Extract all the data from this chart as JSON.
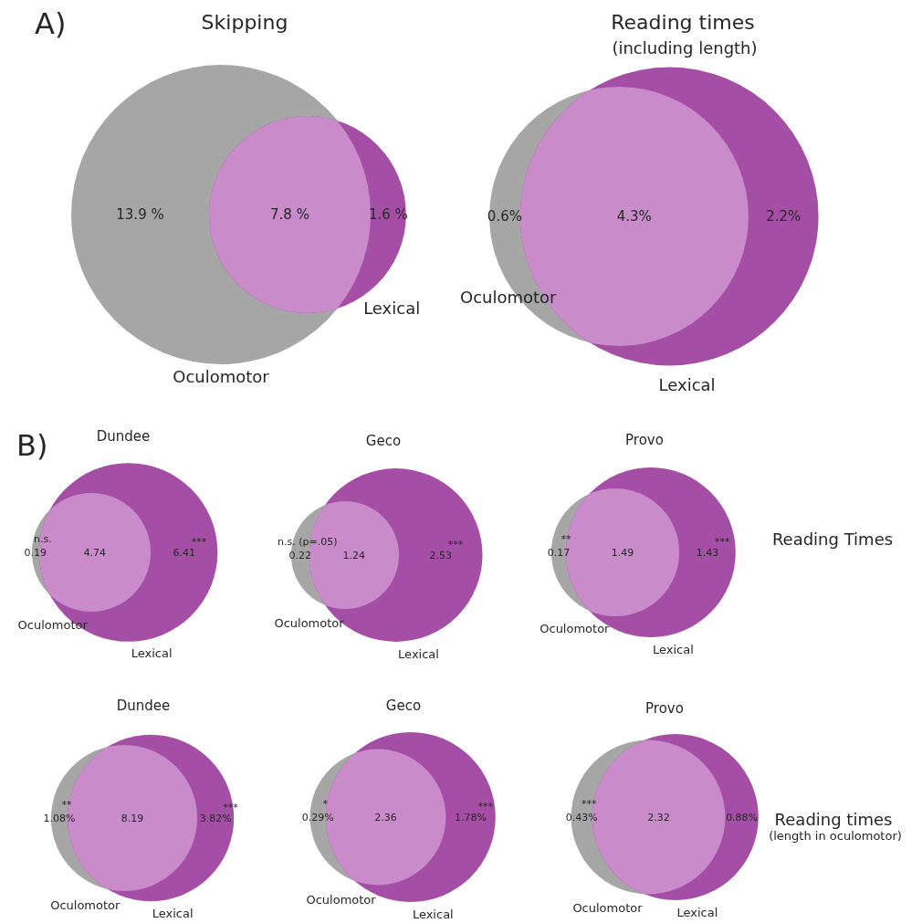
{
  "chart_data": [
    {
      "type": "other",
      "title": "Skipping",
      "categories": [
        "Oculomotor",
        null,
        "Lexical"
      ],
      "values": [
        13.9,
        7.8,
        1.6
      ],
      "value_labels": [
        "13.9 %",
        "7.8 %",
        "1.6 %"
      ],
      "colors": [
        "#a6a6a6",
        "#c98bc9",
        "#a54ea6"
      ],
      "annotations": [
        "A)"
      ]
    },
    {
      "type": "other",
      "title": "Reading times",
      "subtitle": "(including length)",
      "categories": [
        "Oculomotor",
        null,
        "Lexical"
      ],
      "values": [
        0.6,
        4.3,
        2.2
      ],
      "value_labels": [
        "0.6%",
        "4.3%",
        "2.2%"
      ],
      "colors": [
        "#a6a6a6",
        "#c98bc9",
        "#a54ea6"
      ]
    },
    {
      "type": "other",
      "title": "Dundee",
      "categories": [
        "Oculomotor",
        null,
        "Lexical"
      ],
      "values": [
        0.19,
        4.74,
        6.41
      ],
      "data_labels": true,
      "colors": [
        "#a6a6a6",
        "#c98bc9",
        "#a54ea6"
      ],
      "annotations": [
        "B)",
        {
          "text": "n.s.",
          "x": "Oculomotor"
        },
        {
          "text": "***",
          "x": "Lexical"
        }
      ]
    },
    {
      "type": "other",
      "title": "Geco",
      "categories": [
        "Oculomotor",
        null,
        "Lexical"
      ],
      "values": [
        0.22,
        1.24,
        2.53
      ],
      "data_labels": true,
      "colors": [
        "#a6a6a6",
        "#c98bc9",
        "#a54ea6"
      ],
      "annotations": [
        {
          "text": "n.s. (p=.05)",
          "x": "Oculomotor"
        },
        {
          "text": "***",
          "x": "Lexical"
        }
      ]
    },
    {
      "type": "other",
      "title": "Provo",
      "categories": [
        "Oculomotor",
        null,
        "Lexical"
      ],
      "values": [
        0.17,
        1.49,
        1.43
      ],
      "data_labels": true,
      "colors": [
        "#a6a6a6",
        "#c98bc9",
        "#a54ea6"
      ],
      "annotations": [
        {
          "text": "**",
          "x": "Oculomotor"
        },
        {
          "text": "***",
          "x": "Lexical"
        },
        "Reading Times"
      ]
    },
    {
      "type": "other",
      "title": "Dundee",
      "categories": [
        "Oculomotor",
        null,
        "Lexical"
      ],
      "values": [
        1.08,
        8.19,
        3.82
      ],
      "value_labels": [
        "1.08%",
        "8.19",
        "3.82%"
      ],
      "colors": [
        "#a6a6a6",
        "#c98bc9",
        "#a54ea6"
      ],
      "annotations": [
        {
          "text": "**",
          "x": "Oculomotor"
        },
        {
          "text": "***",
          "x": "Lexical"
        }
      ]
    },
    {
      "type": "other",
      "title": "Geco",
      "categories": [
        "Oculomotor",
        null,
        "Lexical"
      ],
      "values": [
        0.29,
        2.36,
        1.78
      ],
      "value_labels": [
        "0.29%",
        "2.36",
        "1.78%"
      ],
      "colors": [
        "#a6a6a6",
        "#c98bc9",
        "#a54ea6"
      ],
      "annotations": [
        {
          "text": "*",
          "x": "Oculomotor"
        },
        {
          "text": "***",
          "x": "Lexical"
        }
      ]
    },
    {
      "type": "other",
      "title": "Provo",
      "categories": [
        "Oculomotor",
        null,
        "Lexical"
      ],
      "values": [
        0.43,
        2.32,
        0.88
      ],
      "value_labels": [
        "0.43%",
        "2.32",
        "0.88%"
      ],
      "colors": [
        "#a6a6a6",
        "#c98bc9",
        "#a54ea6"
      ],
      "annotations": [
        {
          "text": "***",
          "x": "Oculomotor"
        },
        "Reading times",
        "(length in oculomotor)"
      ]
    }
  ]
}
